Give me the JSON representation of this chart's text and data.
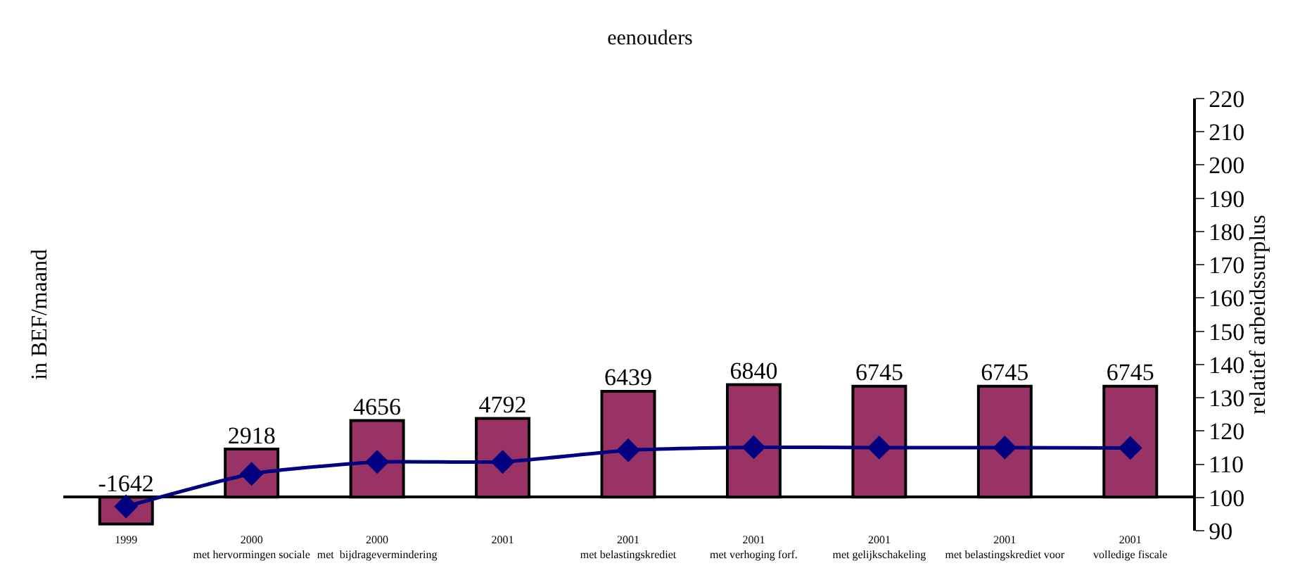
{
  "chart_data": {
    "type": "bar",
    "title": "eenouders",
    "ylabel": "in BEF/maand",
    "y2label": "relatief arbeidssurplus",
    "categories": [
      "1999",
      "2000\nmet hervormingen sociale",
      "2000\nmet  bijdragevermindering",
      "2001",
      "2001\nmet belastingskrediet",
      "2001\nmet verhoging forf.",
      "2001\nmet gelijkschakeling",
      "2001\nmet belastingskrediet voor",
      "2001\nvolledige fiscale"
    ],
    "series": [
      {
        "color": "#993366",
        "values": [
          -1642,
          2918,
          4656,
          4792,
          6439,
          6840,
          6745,
          6745,
          6745
        ],
        "value_labels": [
          "-1642",
          "2918",
          "4656",
          "4792",
          "6439",
          "6840",
          "6745",
          "6745",
          "6745"
        ]
      },
      {
        "type": "line",
        "axis": "y2",
        "color": "#000080",
        "marker": "diamond",
        "values": [
          97.3,
          107.1,
          110.7,
          110.7,
          114.2,
          115.1,
          115.0,
          115.0,
          114.9
        ]
      }
    ],
    "ylim": [
      -2050,
      24270
    ],
    "y2lim": [
      90,
      220
    ],
    "y2ticks": [
      90,
      100,
      110,
      120,
      130,
      140,
      150,
      160,
      170,
      180,
      190,
      200,
      210,
      220
    ]
  }
}
